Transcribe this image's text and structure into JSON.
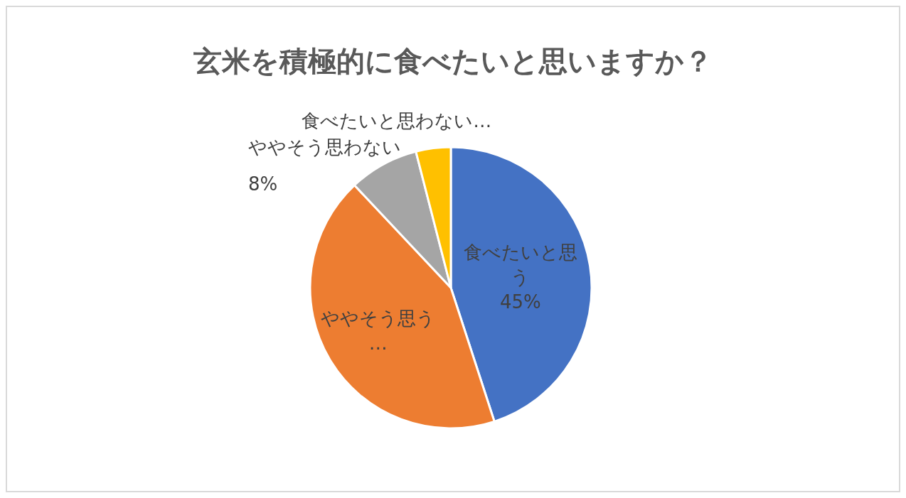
{
  "chart_data": {
    "type": "pie",
    "title": "玄米を積極的に食べたいと思いますか？",
    "categories": [
      "食べたいと思う",
      "ややそう思う…",
      "ややそう思わない",
      "食べたいと思わない…"
    ],
    "values": [
      45,
      43,
      8,
      4
    ],
    "colors": [
      "#4472c4",
      "#ed7d31",
      "#a5a5a5",
      "#ffc000"
    ],
    "value_labels": [
      "45%",
      null,
      "8%",
      null
    ]
  }
}
